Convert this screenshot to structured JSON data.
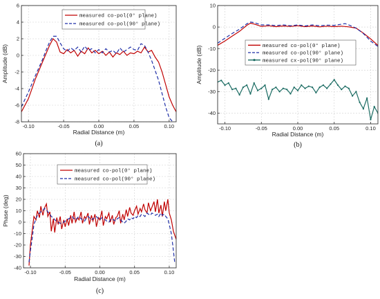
{
  "chart_data": [
    {
      "type": "line",
      "caption": "(a)",
      "xlabel": "Radial Distance (m)",
      "ylabel": "Amplitude (dB)",
      "xlim": [
        -0.11,
        0.11
      ],
      "ylim": [
        -8,
        6
      ],
      "xticks": [
        -0.1,
        -0.05,
        0.0,
        0.05,
        0.1
      ],
      "xtick_labels": [
        "-0.10",
        "-0.05",
        "0.00",
        "0.05",
        "0.10"
      ],
      "yticks": [
        -8,
        -6,
        -4,
        -2,
        0,
        2,
        4,
        6
      ],
      "ytick_labels": [
        "-8",
        "-6",
        "-4",
        "-2",
        "0",
        "2",
        "4",
        "6"
      ],
      "grid": true,
      "legend_position": "top-center",
      "series": [
        {
          "name": "measured co-pol(0° plane)",
          "color": "#c00000",
          "dash": "solid",
          "x": [
            -0.11,
            -0.1,
            -0.09,
            -0.08,
            -0.07,
            -0.065,
            -0.06,
            -0.055,
            -0.05,
            -0.045,
            -0.04,
            -0.035,
            -0.03,
            -0.025,
            -0.02,
            -0.015,
            -0.01,
            -0.005,
            0.0,
            0.005,
            0.01,
            0.015,
            0.02,
            0.025,
            0.03,
            0.035,
            0.04,
            0.045,
            0.05,
            0.055,
            0.06,
            0.065,
            0.07,
            0.075,
            0.08,
            0.085,
            0.09,
            0.095,
            0.1,
            0.105,
            0.11
          ],
          "y": [
            -6.8,
            -5.2,
            -2.8,
            -0.8,
            1.2,
            2.0,
            1.6,
            0.4,
            0.2,
            0.7,
            0.3,
            0.6,
            -0.1,
            0.5,
            0.2,
            0.9,
            0.3,
            0.6,
            0.2,
            0.5,
            0.0,
            0.4,
            -0.2,
            0.3,
            0.1,
            0.5,
            0.0,
            0.3,
            0.2,
            0.5,
            0.3,
            1.0,
            0.4,
            0.6,
            -0.2,
            -0.8,
            -2.0,
            -3.5,
            -5.0,
            -6.0,
            -6.8
          ]
        },
        {
          "name": "measured co-pol(90° plane)",
          "color": "#1f2fa8",
          "dash": "dash",
          "x": [
            -0.11,
            -0.1,
            -0.09,
            -0.08,
            -0.075,
            -0.07,
            -0.065,
            -0.06,
            -0.055,
            -0.05,
            -0.045,
            -0.04,
            -0.035,
            -0.03,
            -0.025,
            -0.02,
            -0.015,
            -0.01,
            -0.005,
            0.0,
            0.005,
            0.01,
            0.015,
            0.02,
            0.025,
            0.03,
            0.035,
            0.04,
            0.045,
            0.05,
            0.055,
            0.06,
            0.065,
            0.07,
            0.075,
            0.08,
            0.085,
            0.09,
            0.095,
            0.1,
            0.105
          ],
          "y": [
            -6.2,
            -4.4,
            -2.4,
            -0.5,
            0.6,
            1.6,
            2.3,
            2.3,
            1.5,
            0.8,
            0.5,
            0.9,
            0.6,
            1.0,
            0.4,
            1.1,
            0.6,
            0.8,
            0.3,
            0.7,
            0.3,
            0.8,
            0.4,
            0.6,
            0.2,
            0.9,
            0.4,
            0.7,
            1.0,
            0.7,
            0.6,
            1.4,
            1.2,
            0.4,
            -0.6,
            -1.8,
            -3.0,
            -4.6,
            -6.2,
            -7.5,
            -8.0
          ]
        }
      ]
    },
    {
      "type": "line",
      "caption": "(b)",
      "xlabel": "Radial Distance (m)",
      "ylabel": "Amplitude (dB)",
      "xlim": [
        -0.11,
        0.11
      ],
      "ylim": [
        -45,
        10
      ],
      "xticks": [
        -0.1,
        -0.05,
        0.0,
        0.05,
        0.1
      ],
      "xtick_labels": [
        "-0.10",
        "-0.05",
        "0.00",
        "0.05",
        "0.10"
      ],
      "yticks": [
        -40,
        -30,
        -20,
        -10,
        0,
        10
      ],
      "ytick_labels": [
        "-40",
        "-30",
        "-20",
        "-10",
        "0",
        "10"
      ],
      "grid": true,
      "legend_position": "right-middle",
      "series": [
        {
          "name": "measured co-pol(0° plane)",
          "color": "#c00000",
          "dash": "solid",
          "x": [
            -0.11,
            -0.1,
            -0.09,
            -0.08,
            -0.07,
            -0.065,
            -0.06,
            -0.05,
            -0.04,
            -0.03,
            -0.02,
            -0.01,
            0.0,
            0.01,
            0.02,
            0.03,
            0.04,
            0.05,
            0.06,
            0.07,
            0.08,
            0.09,
            0.1,
            0.11
          ],
          "y": [
            -8.5,
            -6.5,
            -4.2,
            -2.0,
            0.8,
            1.8,
            1.4,
            0.3,
            0.6,
            0.2,
            0.5,
            0.3,
            0.6,
            0.2,
            0.5,
            0.1,
            0.4,
            0.2,
            0.4,
            0.1,
            -0.5,
            -2.8,
            -5.5,
            -8.5
          ]
        },
        {
          "name": "measured co-pol(90° plane)",
          "color": "#1f2fa8",
          "dash": "dash",
          "x": [
            -0.11,
            -0.1,
            -0.09,
            -0.08,
            -0.07,
            -0.065,
            -0.06,
            -0.05,
            -0.04,
            -0.03,
            -0.02,
            -0.01,
            0.0,
            0.01,
            0.02,
            0.03,
            0.04,
            0.05,
            0.06,
            0.065,
            0.07,
            0.08,
            0.09,
            0.1,
            0.11
          ],
          "y": [
            -7.5,
            -5.2,
            -3.0,
            -1.0,
            1.5,
            2.3,
            2.1,
            1.0,
            1.0,
            0.7,
            1.0,
            0.6,
            1.0,
            0.5,
            1.0,
            0.6,
            0.9,
            0.8,
            1.3,
            1.6,
            1.0,
            -0.5,
            -3.0,
            -6.5,
            -9.0
          ]
        },
        {
          "name": "measured cx-pol(90° plane)",
          "color": "#1a6b62",
          "dash": "solid",
          "markers": true,
          "x": [
            -0.11,
            -0.105,
            -0.1,
            -0.095,
            -0.09,
            -0.085,
            -0.08,
            -0.075,
            -0.07,
            -0.065,
            -0.06,
            -0.055,
            -0.05,
            -0.045,
            -0.04,
            -0.035,
            -0.03,
            -0.025,
            -0.02,
            -0.015,
            -0.01,
            -0.005,
            0.0,
            0.005,
            0.01,
            0.015,
            0.02,
            0.025,
            0.03,
            0.035,
            0.04,
            0.045,
            0.05,
            0.055,
            0.06,
            0.065,
            0.07,
            0.075,
            0.08,
            0.085,
            0.09,
            0.095,
            0.1,
            0.105,
            0.11
          ],
          "y": [
            -25.5,
            -24.8,
            -27.0,
            -26.0,
            -29.0,
            -28.5,
            -31.5,
            -28.0,
            -27.0,
            -31.0,
            -26.0,
            -29.5,
            -28.5,
            -27.0,
            -33.5,
            -29.0,
            -28.0,
            -30.0,
            -28.5,
            -29.0,
            -31.0,
            -28.0,
            -29.5,
            -27.0,
            -28.5,
            -27.5,
            -28.0,
            -30.5,
            -28.0,
            -27.0,
            -28.5,
            -26.5,
            -24.5,
            -27.0,
            -29.0,
            -27.5,
            -28.5,
            -32.0,
            -30.0,
            -35.0,
            -38.0,
            -33.0,
            -43.0,
            -37.0,
            -40.0
          ]
        }
      ]
    },
    {
      "type": "line",
      "caption": "(c)",
      "xlabel": "Radial Distance (m)",
      "ylabel": "Phase (deg)",
      "xlim": [
        -0.11,
        0.11
      ],
      "ylim": [
        -40,
        60
      ],
      "xticks": [
        -0.1,
        -0.05,
        0.0,
        0.05,
        0.1
      ],
      "xtick_labels": [
        "-0.10",
        "-0.05",
        "0.00",
        "0.05",
        "0.10"
      ],
      "yticks": [
        -40,
        -30,
        -20,
        -10,
        0,
        10,
        20,
        30,
        40,
        50,
        60
      ],
      "ytick_labels": [
        "-40",
        "-30",
        "-20",
        "-10",
        "0",
        "10",
        "20",
        "30",
        "40",
        "50",
        "60"
      ],
      "grid": true,
      "legend_position": "top-center",
      "series": [
        {
          "name": "measured co-pol(0° plane)",
          "color": "#c00000",
          "dash": "solid",
          "x": [
            -0.102,
            -0.1,
            -0.097,
            -0.095,
            -0.092,
            -0.09,
            -0.087,
            -0.085,
            -0.082,
            -0.08,
            -0.077,
            -0.075,
            -0.072,
            -0.07,
            -0.067,
            -0.065,
            -0.062,
            -0.06,
            -0.057,
            -0.055,
            -0.052,
            -0.05,
            -0.047,
            -0.045,
            -0.042,
            -0.04,
            -0.037,
            -0.035,
            -0.032,
            -0.03,
            -0.027,
            -0.025,
            -0.022,
            -0.02,
            -0.017,
            -0.015,
            -0.012,
            -0.01,
            -0.007,
            -0.005,
            -0.002,
            0.0,
            0.003,
            0.005,
            0.008,
            0.01,
            0.013,
            0.015,
            0.018,
            0.02,
            0.023,
            0.025,
            0.028,
            0.03,
            0.033,
            0.035,
            0.038,
            0.04,
            0.043,
            0.045,
            0.048,
            0.05,
            0.053,
            0.055,
            0.058,
            0.06,
            0.063,
            0.065,
            0.068,
            0.07,
            0.073,
            0.075,
            0.078,
            0.08,
            0.083,
            0.085,
            0.088,
            0.09,
            0.093,
            0.095,
            0.098,
            0.1,
            0.103,
            0.106,
            0.11
          ],
          "y": [
            -38,
            -20,
            -5,
            5,
            2,
            10,
            4,
            14,
            6,
            12,
            16,
            5,
            9,
            -8,
            3,
            -9,
            4,
            -2,
            5,
            -6,
            2,
            -4,
            3,
            -3,
            6,
            -1,
            9,
            0,
            4,
            2,
            9,
            -1,
            5,
            3,
            8,
            -2,
            6,
            1,
            7,
            -4,
            4,
            2,
            10,
            -3,
            5,
            3,
            8,
            0,
            6,
            -2,
            4,
            5,
            10,
            -1,
            7,
            2,
            11,
            5,
            13,
            8,
            6,
            10,
            14,
            7,
            12,
            9,
            16,
            11,
            8,
            17,
            10,
            13,
            18,
            9,
            20,
            8,
            15,
            5,
            18,
            10,
            20,
            8,
            2,
            -8,
            -15
          ]
        },
        {
          "name": "measured co-pol(90° plane)",
          "color": "#1f2fa8",
          "dash": "dash",
          "x": [
            -0.102,
            -0.1,
            -0.097,
            -0.095,
            -0.092,
            -0.09,
            -0.087,
            -0.085,
            -0.082,
            -0.08,
            -0.077,
            -0.075,
            -0.072,
            -0.07,
            -0.067,
            -0.065,
            -0.062,
            -0.06,
            -0.057,
            -0.055,
            -0.052,
            -0.05,
            -0.047,
            -0.045,
            -0.042,
            -0.04,
            -0.037,
            -0.035,
            -0.032,
            -0.03,
            -0.027,
            -0.025,
            -0.022,
            -0.02,
            -0.017,
            -0.015,
            -0.012,
            -0.01,
            -0.007,
            -0.005,
            -0.002,
            0.0,
            0.003,
            0.005,
            0.008,
            0.01,
            0.013,
            0.015,
            0.018,
            0.02,
            0.023,
            0.025,
            0.028,
            0.03,
            0.033,
            0.035,
            0.038,
            0.04,
            0.043,
            0.045,
            0.048,
            0.05,
            0.053,
            0.055,
            0.058,
            0.06,
            0.063,
            0.065,
            0.068,
            0.07,
            0.073,
            0.075,
            0.078,
            0.08,
            0.083,
            0.085,
            0.088,
            0.09,
            0.093,
            0.095,
            0.098,
            0.1,
            0.103,
            0.106,
            0.108
          ],
          "y": [
            -35,
            -25,
            -12,
            -2,
            3,
            6,
            8,
            9,
            10,
            12,
            11,
            9,
            7,
            5,
            4,
            2,
            1,
            0,
            -1,
            -1,
            0,
            1,
            2,
            3,
            4,
            5,
            3,
            2,
            4,
            5,
            3,
            2,
            1,
            3,
            5,
            4,
            2,
            3,
            4,
            5,
            3,
            2,
            4,
            3,
            2,
            1,
            0,
            2,
            3,
            2,
            1,
            3,
            4,
            2,
            0,
            -1,
            1,
            3,
            2,
            4,
            3,
            5,
            4,
            6,
            5,
            7,
            6,
            5,
            8,
            7,
            6,
            8,
            7,
            6,
            7,
            5,
            8,
            6,
            7,
            5,
            3,
            -2,
            -10,
            -25,
            -36
          ]
        }
      ]
    }
  ]
}
